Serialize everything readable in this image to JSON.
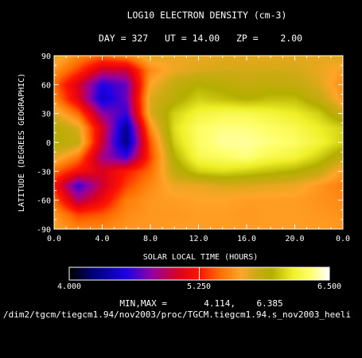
{
  "chart_data": {
    "type": "heatmap",
    "title": "LOG10 ELECTRON DENSITY (cm-3)",
    "subtitle": "DAY = 327   UT = 14.00   ZP =    2.00",
    "xlabel": "SOLAR LOCAL TIME (HOURS)",
    "ylabel": "LATITUDE (DEGREES GEOGRAPHIC)",
    "xlim": [
      0,
      24
    ],
    "ylim": [
      -90,
      90
    ],
    "x_ticks": [
      "0.0",
      "4.0",
      "8.0",
      "12.0",
      "16.0",
      "20.0",
      "0.0"
    ],
    "y_ticks": [
      "90",
      "60",
      "30",
      "0",
      "-30",
      "-60",
      "-90"
    ],
    "x": [
      0,
      2,
      4,
      6,
      8,
      10,
      12,
      14,
      16,
      18,
      20,
      22,
      24
    ],
    "y": [
      90,
      75,
      60,
      45,
      30,
      15,
      0,
      -15,
      -30,
      -45,
      -60,
      -75,
      -90
    ],
    "z": [
      [
        5.75,
        5.55,
        5.45,
        5.55,
        5.75,
        5.7,
        5.7,
        5.72,
        5.72,
        5.72,
        5.72,
        5.72,
        5.75
      ],
      [
        5.6,
        5.35,
        5.0,
        5.0,
        5.55,
        5.7,
        5.75,
        5.78,
        5.78,
        5.78,
        5.78,
        5.72,
        5.62
      ],
      [
        5.45,
        5.05,
        4.55,
        4.7,
        5.65,
        5.85,
        5.95,
        5.9,
        5.85,
        5.88,
        5.85,
        5.75,
        5.55
      ],
      [
        5.55,
        5.1,
        4.45,
        4.7,
        5.75,
        5.9,
        6.05,
        6.0,
        5.95,
        6.0,
        6.0,
        5.85,
        5.6
      ],
      [
        5.75,
        5.45,
        4.8,
        4.6,
        5.75,
        6.05,
        6.2,
        6.25,
        6.25,
        6.2,
        6.15,
        6.05,
        5.8
      ],
      [
        5.92,
        5.75,
        5.05,
        4.3,
        5.55,
        6.1,
        6.3,
        6.35,
        6.35,
        6.3,
        6.25,
        6.15,
        6.05
      ],
      [
        5.95,
        5.85,
        5.0,
        4.25,
        5.4,
        6.05,
        6.3,
        6.38,
        6.38,
        6.35,
        6.3,
        6.2,
        6.05
      ],
      [
        5.75,
        5.5,
        4.85,
        4.6,
        5.35,
        5.95,
        6.25,
        6.3,
        6.35,
        6.25,
        6.2,
        6.05,
        5.85
      ],
      [
        5.45,
        5.2,
        5.05,
        5.25,
        5.45,
        5.85,
        6.05,
        6.1,
        6.05,
        6.0,
        5.95,
        5.85,
        5.6
      ],
      [
        5.25,
        4.6,
        5.0,
        5.35,
        5.55,
        5.7,
        5.7,
        5.75,
        5.75,
        5.72,
        5.7,
        5.6,
        5.5
      ],
      [
        5.45,
        4.9,
        5.15,
        5.5,
        5.6,
        5.62,
        5.65,
        5.65,
        5.62,
        5.62,
        5.62,
        5.58,
        5.55
      ],
      [
        5.6,
        5.35,
        5.4,
        5.55,
        5.6,
        5.6,
        5.62,
        5.62,
        5.6,
        5.62,
        5.62,
        5.6,
        5.58
      ],
      [
        5.65,
        5.55,
        5.55,
        5.6,
        5.6,
        5.62,
        5.62,
        5.62,
        5.62,
        5.62,
        5.62,
        5.62,
        5.6
      ]
    ],
    "colorbar": {
      "min_label": "4.000",
      "mid_label": "5.250",
      "max_label": "6.500",
      "vmin": 4.0,
      "vmax": 6.5
    },
    "minmax_text": "MIN,MAX =       4.114,    6.385",
    "file_text": "/dim2/tgcm/tiegcm1.94/nov2003/proc/TGCM.tiegcm1.94.s_nov2003_heeli",
    "grid": false
  }
}
